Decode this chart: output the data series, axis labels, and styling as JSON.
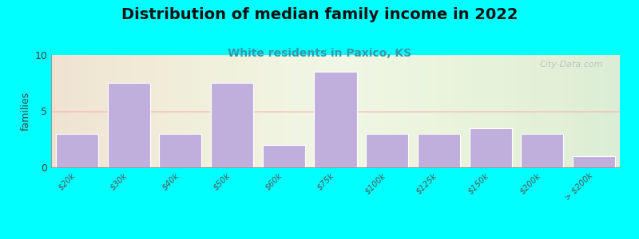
{
  "title": "Distribution of median family income in 2022",
  "subtitle": "White residents in Paxico, KS",
  "ylabel": "families",
  "categories": [
    "$20k",
    "$30k",
    "$40k",
    "$50k",
    "$60k",
    "$75k",
    "$100k",
    "$125k",
    "$150k",
    "$200k",
    "> $200k"
  ],
  "values": [
    3,
    7.5,
    3,
    7.5,
    2,
    8.5,
    3,
    3,
    3.5,
    3,
    1
  ],
  "bar_color": "#c0aedd",
  "bar_edge_color": "#ffffff",
  "background_outer": "#00ffff",
  "grid_line_color": "#ffaaaa",
  "ylim": [
    0,
    10
  ],
  "yticks": [
    0,
    5,
    10
  ],
  "title_fontsize": 14,
  "subtitle_fontsize": 10,
  "subtitle_color": "#3399aa",
  "ylabel_fontsize": 9,
  "watermark": "City-Data.com"
}
